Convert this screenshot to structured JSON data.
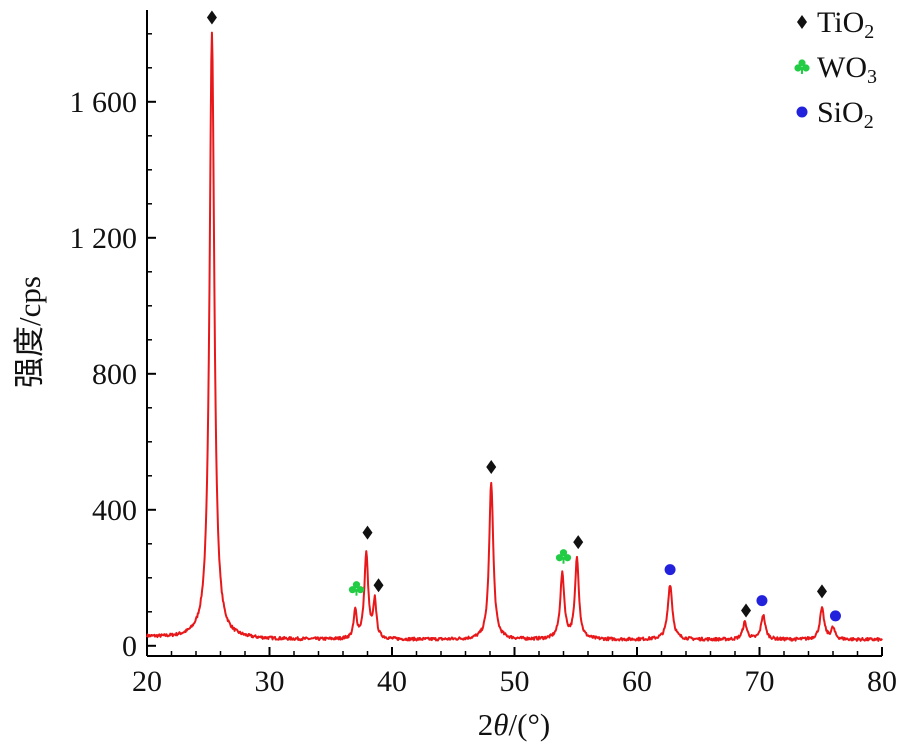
{
  "chart_data": {
    "type": "line",
    "title": "",
    "xlabel": {
      "prefix": "2",
      "italic": "θ",
      "suffix": "/(°)"
    },
    "ylabel": "强度/cps",
    "xlim": [
      20,
      80
    ],
    "ylim": [
      -30,
      1870
    ],
    "xticks": [
      20,
      30,
      40,
      50,
      60,
      70,
      80
    ],
    "yticks": [
      {
        "value": 0,
        "label": "0"
      },
      {
        "value": 400,
        "label": "400"
      },
      {
        "value": 800,
        "label": "800"
      },
      {
        "value": 1200,
        "label": "1 200"
      },
      {
        "value": 1600,
        "label": "1 600"
      }
    ],
    "grid": false,
    "legend_position": "top-right",
    "series": [
      {
        "color": "#e8181a",
        "baseline": 18,
        "peaks": [
          {
            "x": 25.3,
            "height": 1782,
            "width": 0.35
          },
          {
            "x": 37.0,
            "height": 80,
            "width": 0.22
          },
          {
            "x": 37.9,
            "height": 250,
            "width": 0.28
          },
          {
            "x": 38.6,
            "height": 110,
            "width": 0.22
          },
          {
            "x": 48.1,
            "height": 462,
            "width": 0.3
          },
          {
            "x": 53.9,
            "height": 190,
            "width": 0.3
          },
          {
            "x": 55.1,
            "height": 238,
            "width": 0.28
          },
          {
            "x": 62.7,
            "height": 162,
            "width": 0.33
          },
          {
            "x": 68.8,
            "height": 50,
            "width": 0.3
          },
          {
            "x": 70.3,
            "height": 72,
            "width": 0.3
          },
          {
            "x": 75.1,
            "height": 90,
            "width": 0.32
          },
          {
            "x": 76.0,
            "height": 32,
            "width": 0.28
          }
        ]
      }
    ],
    "legend": [
      {
        "marker": "diamond",
        "color": "#111111",
        "label": "TiO",
        "sub": "2"
      },
      {
        "marker": "club",
        "color": "#22cc44",
        "label": "WO",
        "sub": "3"
      },
      {
        "marker": "circle",
        "color": "#2222dd",
        "label": "SiO",
        "sub": "2"
      }
    ],
    "markers": [
      {
        "marker": "diamond",
        "color": "#111111",
        "x": 25.3,
        "y": 1848
      },
      {
        "marker": "diamond",
        "color": "#111111",
        "x": 38.0,
        "y": 333
      },
      {
        "marker": "diamond",
        "color": "#111111",
        "x": 38.9,
        "y": 178
      },
      {
        "marker": "diamond",
        "color": "#111111",
        "x": 48.1,
        "y": 526
      },
      {
        "marker": "diamond",
        "color": "#111111",
        "x": 55.2,
        "y": 305
      },
      {
        "marker": "diamond",
        "color": "#111111",
        "x": 68.9,
        "y": 104
      },
      {
        "marker": "diamond",
        "color": "#111111",
        "x": 75.1,
        "y": 160
      },
      {
        "marker": "club",
        "color": "#22cc44",
        "x": 37.1,
        "y": 168
      },
      {
        "marker": "club",
        "color": "#22cc44",
        "x": 54.0,
        "y": 262
      },
      {
        "marker": "circle",
        "color": "#2222dd",
        "x": 62.7,
        "y": 224
      },
      {
        "marker": "circle",
        "color": "#2222dd",
        "x": 70.2,
        "y": 133
      },
      {
        "marker": "circle",
        "color": "#2222dd",
        "x": 76.2,
        "y": 88
      }
    ]
  }
}
